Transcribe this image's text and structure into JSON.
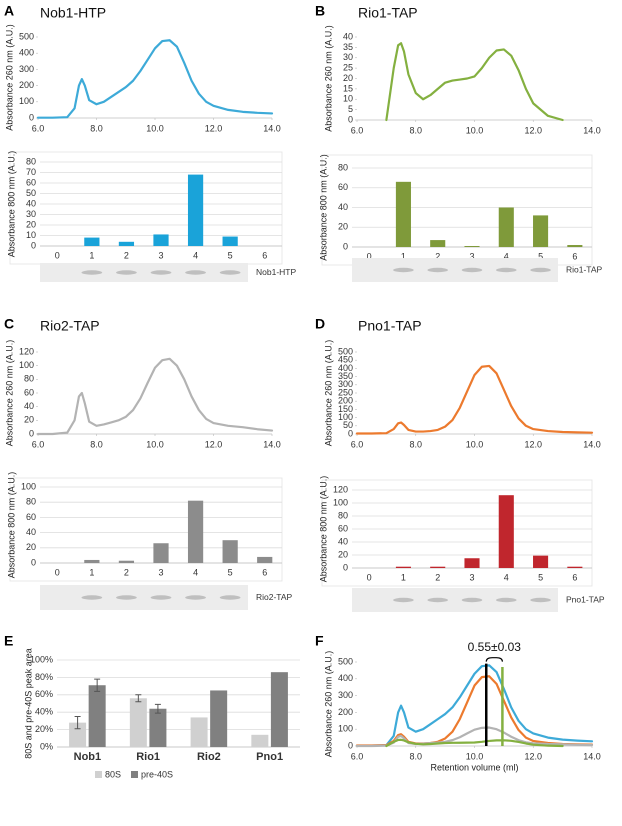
{
  "chart_data": [
    {
      "type": "line",
      "panel": "A",
      "title": "Nob1-HTP",
      "ylabel": "Absorbance 260 nm (A.U.)",
      "x": [
        6,
        6.5,
        7,
        7.25,
        7.4,
        7.5,
        7.6,
        7.75,
        8,
        8.25,
        8.5,
        8.75,
        9,
        9.25,
        9.5,
        9.75,
        10,
        10.25,
        10.5,
        10.75,
        11,
        11.25,
        11.5,
        11.75,
        12,
        12.5,
        13,
        13.5,
        14
      ],
      "series": [
        {
          "color": "#3daad8",
          "values": [
            2,
            2,
            5,
            60,
            200,
            240,
            200,
            110,
            85,
            100,
            130,
            160,
            190,
            230,
            290,
            360,
            430,
            475,
            480,
            440,
            340,
            230,
            150,
            100,
            75,
            50,
            38,
            32,
            28
          ]
        }
      ],
      "xlim": [
        6,
        14
      ],
      "xticks": [
        {
          "value": 6,
          "label": "6.0"
        },
        {
          "value": 8,
          "label": "8.0"
        },
        {
          "value": 10,
          "label": "10.0"
        },
        {
          "value": 12,
          "label": "12.0"
        },
        {
          "value": 14,
          "label": "14.0"
        }
      ],
      "ylim": [
        0,
        500
      ],
      "yticks": [
        0,
        100,
        200,
        300,
        400,
        500
      ],
      "grid": false
    },
    {
      "type": "bar",
      "ylabel": "Absorbance 800 nm (A.U.)",
      "categories": [
        "0",
        "1",
        "2",
        "3",
        "4",
        "5",
        "6"
      ],
      "values": [
        0,
        8,
        4,
        11,
        68,
        9,
        0
      ],
      "color": "#1aa3d9",
      "ylim": [
        0,
        80
      ],
      "yticks": [
        0,
        10,
        20,
        30,
        40,
        50,
        60,
        70,
        80
      ],
      "grid": true,
      "blot_label": "Nob1-HTP"
    },
    {
      "type": "line",
      "panel": "B",
      "title": "Rio1-TAP",
      "ylabel": "Absorbance 260 nm (A.U.)",
      "x": [
        6,
        6.5,
        7,
        7.25,
        7.4,
        7.5,
        7.6,
        7.75,
        8,
        8.25,
        8.5,
        8.75,
        9,
        9.25,
        9.5,
        9.75,
        10,
        10.25,
        10.5,
        10.75,
        11,
        11.25,
        11.5,
        11.75,
        12,
        12.5,
        13,
        13.5,
        14
      ],
      "series": [
        {
          "color": "#84b040",
          "values": [
            null,
            null,
            0,
            25,
            36,
            37,
            33,
            22,
            13,
            10,
            12,
            15,
            18,
            19,
            19.5,
            20,
            21,
            25,
            30,
            33.5,
            34,
            31,
            24,
            15,
            8,
            2,
            0,
            null,
            null
          ]
        }
      ],
      "xlim": [
        6,
        14
      ],
      "xticks": [
        {
          "value": 6,
          "label": "6.0"
        },
        {
          "value": 8,
          "label": "8.0"
        },
        {
          "value": 10,
          "label": "10.0"
        },
        {
          "value": 12,
          "label": "12.0"
        },
        {
          "value": 14,
          "label": "14.0"
        }
      ],
      "ylim": [
        0,
        40
      ],
      "yticks": [
        0,
        5,
        10,
        15,
        20,
        25,
        30,
        35,
        40
      ],
      "grid": false
    },
    {
      "type": "bar",
      "ylabel": "Absorbance 800 nm (A.U.)",
      "categories": [
        "0",
        "1",
        "2",
        "3",
        "4",
        "5",
        "6"
      ],
      "values": [
        0,
        66,
        7,
        1,
        40,
        32,
        2
      ],
      "color": "#7f9a3a",
      "ylim": [
        0,
        80
      ],
      "yticks": [
        0,
        20,
        40,
        60,
        80
      ],
      "grid": true,
      "blot_label": "Rio1-TAP"
    },
    {
      "type": "line",
      "panel": "C",
      "title": "Rio2-TAP",
      "ylabel": "Absorbance 260 nm (A.U.)",
      "x": [
        6,
        6.5,
        7,
        7.25,
        7.4,
        7.5,
        7.6,
        7.75,
        8,
        8.25,
        8.5,
        8.75,
        9,
        9.25,
        9.5,
        9.75,
        10,
        10.25,
        10.5,
        10.75,
        11,
        11.25,
        11.5,
        11.75,
        12,
        12.5,
        13,
        13.5,
        14
      ],
      "series": [
        {
          "color": "#b3b3b3",
          "values": [
            0,
            0,
            2,
            20,
            55,
            60,
            45,
            18,
            12,
            14,
            17,
            20,
            25,
            35,
            52,
            75,
            97,
            108,
            110,
            100,
            80,
            55,
            35,
            22,
            16,
            12,
            10,
            7,
            5
          ]
        }
      ],
      "xlim": [
        6,
        14
      ],
      "xticks": [
        {
          "value": 6,
          "label": "6.0"
        },
        {
          "value": 8,
          "label": "8.0"
        },
        {
          "value": 10,
          "label": "10.0"
        },
        {
          "value": 12,
          "label": "12.0"
        },
        {
          "value": 14,
          "label": "14.0"
        }
      ],
      "ylim": [
        0,
        120
      ],
      "yticks": [
        0,
        20,
        40,
        60,
        80,
        100,
        120
      ],
      "grid": false
    },
    {
      "type": "bar",
      "ylabel": "Absorbance 800 nm (A.U.)",
      "categories": [
        "0",
        "1",
        "2",
        "3",
        "4",
        "5",
        "6"
      ],
      "values": [
        0,
        4,
        3,
        26,
        82,
        30,
        8
      ],
      "color": "#8c8c8c",
      "ylim": [
        0,
        100
      ],
      "yticks": [
        0,
        20,
        40,
        60,
        80,
        100
      ],
      "grid": true,
      "blot_label": "Rio2-TAP"
    },
    {
      "type": "line",
      "panel": "D",
      "title": "Pno1-TAP",
      "ylabel": "Absorbance 260 nm (A.U.)",
      "x": [
        6,
        6.5,
        7,
        7.25,
        7.4,
        7.5,
        7.6,
        7.75,
        8,
        8.25,
        8.5,
        8.75,
        9,
        9.25,
        9.5,
        9.75,
        10,
        10.25,
        10.5,
        10.75,
        11,
        11.25,
        11.5,
        11.75,
        12,
        12.5,
        13,
        13.5,
        14
      ],
      "series": [
        {
          "color": "#ec7a2e",
          "values": [
            3,
            3,
            5,
            30,
            65,
            70,
            55,
            25,
            15,
            15,
            18,
            25,
            45,
            85,
            160,
            260,
            360,
            410,
            415,
            370,
            270,
            170,
            95,
            50,
            30,
            18,
            12,
            10,
            8
          ]
        }
      ],
      "xlim": [
        6,
        14
      ],
      "xticks": [
        {
          "value": 6,
          "label": "6.0"
        },
        {
          "value": 8,
          "label": "8.0"
        },
        {
          "value": 10,
          "label": "10.0"
        },
        {
          "value": 12,
          "label": "12.0"
        },
        {
          "value": 14,
          "label": "14.0"
        }
      ],
      "ylim": [
        0,
        500
      ],
      "yticks": [
        0,
        50,
        100,
        150,
        200,
        250,
        300,
        350,
        400,
        450,
        500
      ],
      "grid": false
    },
    {
      "type": "bar",
      "ylabel": "Absorbance 800 nm (A.U.)",
      "categories": [
        "0",
        "1",
        "2",
        "3",
        "4",
        "5",
        "6"
      ],
      "values": [
        0,
        2,
        2,
        15,
        112,
        19,
        2
      ],
      "color": "#c0262d",
      "ylim": [
        0,
        120
      ],
      "yticks": [
        0,
        20,
        40,
        60,
        80,
        100,
        120
      ],
      "grid": true,
      "blot_label": "Pno1-TAP"
    },
    {
      "type": "bar",
      "panel": "E",
      "ylabel": "80S and pre-40S peak area",
      "categories": [
        "Nob1",
        "Rio1",
        "Rio2",
        "Pno1"
      ],
      "series": [
        {
          "name": "80S",
          "color": "#d0d0d0",
          "values": [
            28,
            56,
            34,
            14
          ],
          "errors": [
            7,
            4,
            null,
            null
          ]
        },
        {
          "name": "pre-40S",
          "color": "#808080",
          "values": [
            71,
            44,
            65,
            86
          ],
          "errors": [
            7,
            5,
            null,
            null
          ]
        }
      ],
      "ylim": [
        0,
        100
      ],
      "yticks": [
        {
          "value": 0,
          "label": "0%"
        },
        {
          "value": 20,
          "label": "20%"
        },
        {
          "value": 40,
          "label": "40%"
        },
        {
          "value": 60,
          "label": "60%"
        },
        {
          "value": 80,
          "label": "80%"
        },
        {
          "value": 100,
          "label": "100%"
        }
      ],
      "grid": true,
      "legend": "bottom"
    },
    {
      "type": "line",
      "panel": "F",
      "ylabel": "Absorbance 260 nm (A.U.)",
      "xlabel": "Retention volume (ml)",
      "annotation": "0.55±0.03",
      "x": [
        6,
        6.5,
        7,
        7.25,
        7.4,
        7.5,
        7.6,
        7.75,
        8,
        8.25,
        8.5,
        8.75,
        9,
        9.25,
        9.5,
        9.75,
        10,
        10.25,
        10.5,
        10.75,
        11,
        11.25,
        11.5,
        11.75,
        12,
        12.5,
        13,
        13.5,
        14
      ],
      "series": [
        {
          "color": "#3daad8",
          "values": [
            2,
            2,
            5,
            60,
            200,
            240,
            200,
            110,
            85,
            100,
            130,
            160,
            190,
            230,
            290,
            360,
            430,
            475,
            480,
            440,
            340,
            230,
            150,
            100,
            75,
            50,
            38,
            32,
            28
          ]
        },
        {
          "color": "#ec7a2e",
          "values": [
            3,
            3,
            5,
            30,
            65,
            70,
            55,
            25,
            15,
            15,
            18,
            25,
            45,
            85,
            160,
            260,
            360,
            410,
            415,
            370,
            270,
            170,
            95,
            50,
            30,
            18,
            12,
            10,
            8
          ]
        },
        {
          "color": "#b3b3b3",
          "values": [
            0,
            0,
            2,
            20,
            55,
            60,
            45,
            18,
            12,
            14,
            17,
            20,
            25,
            35,
            52,
            75,
            97,
            108,
            110,
            100,
            80,
            55,
            35,
            22,
            16,
            12,
            10,
            7,
            5
          ]
        },
        {
          "color": "#84b040",
          "values": [
            null,
            null,
            0,
            25,
            36,
            37,
            33,
            22,
            13,
            10,
            12,
            15,
            18,
            19,
            19.5,
            20,
            21,
            25,
            30,
            33.5,
            34,
            31,
            24,
            15,
            8,
            2,
            0,
            null,
            null
          ]
        }
      ],
      "markers": [
        {
          "x": 10.4,
          "y": 490,
          "color": "#000000"
        },
        {
          "x": 10.95,
          "y": 470,
          "color": "#84b040"
        }
      ],
      "xlim": [
        6,
        14
      ],
      "xticks": [
        {
          "value": 6,
          "label": "6.0"
        },
        {
          "value": 8,
          "label": "8.0"
        },
        {
          "value": 10,
          "label": "10.0"
        },
        {
          "value": 12,
          "label": "12.0"
        },
        {
          "value": 14,
          "label": "14.0"
        }
      ],
      "ylim": [
        0,
        500
      ],
      "yticks": [
        0,
        100,
        200,
        300,
        400,
        500
      ],
      "grid": false
    }
  ]
}
